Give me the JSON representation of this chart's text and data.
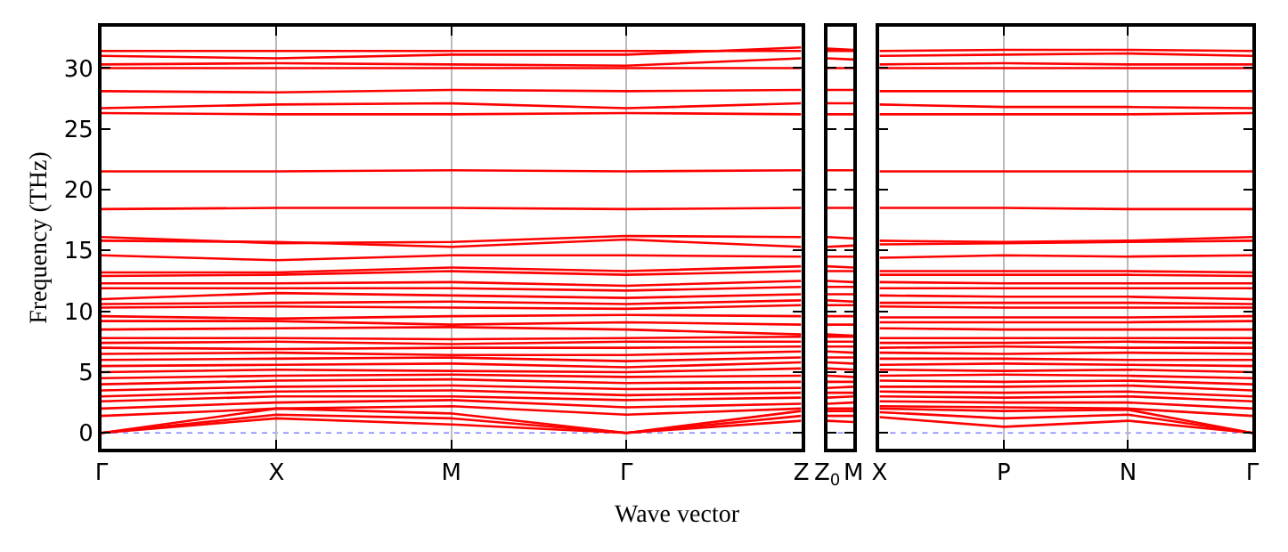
{
  "chart_data": [
    {
      "type": "line",
      "ylabel": "Frequency (THz)",
      "xlabel": "Wave vector",
      "categories": [
        "Γ",
        "X",
        "M",
        "Γ",
        "Z"
      ],
      "ylim": [
        -1.3,
        33.4
      ],
      "yticks": [
        0,
        5,
        10,
        15,
        20,
        25,
        30
      ],
      "grid": "x",
      "marker": "none",
      "line_style": "solid",
      "ref_lines": [
        {
          "axis": "y",
          "value": 0,
          "color": "#8080ff",
          "line_style": "dotted"
        }
      ],
      "series": [
        {
          "color": "#ff0000",
          "values": [
            31.4,
            31.4,
            31.4,
            31.4,
            31.4
          ]
        },
        {
          "color": "#ff0000",
          "values": [
            31.0,
            30.8,
            31.1,
            31.1,
            31.7
          ]
        },
        {
          "color": "#ff0000",
          "values": [
            30.3,
            30.4,
            30.3,
            30.2,
            30.8
          ]
        },
        {
          "color": "#ff0000",
          "values": [
            30.0,
            30.0,
            30.0,
            30.0,
            30.0
          ]
        },
        {
          "color": "#ff0000",
          "values": [
            28.1,
            28.0,
            28.2,
            28.1,
            28.2
          ]
        },
        {
          "color": "#ff0000",
          "values": [
            26.7,
            27.0,
            27.1,
            26.7,
            27.1
          ]
        },
        {
          "color": "#ff0000",
          "values": [
            26.3,
            26.2,
            26.2,
            26.3,
            26.2
          ]
        },
        {
          "color": "#ff0000",
          "values": [
            21.5,
            21.5,
            21.6,
            21.5,
            21.6
          ]
        },
        {
          "color": "#ff0000",
          "values": [
            18.4,
            18.5,
            18.5,
            18.4,
            18.5
          ]
        },
        {
          "color": "#ff0000",
          "values": [
            16.1,
            15.6,
            15.7,
            16.2,
            16.1
          ]
        },
        {
          "color": "#ff0000",
          "values": [
            15.8,
            15.7,
            15.3,
            15.9,
            15.3
          ]
        },
        {
          "color": "#ff0000",
          "values": [
            14.6,
            14.2,
            14.6,
            14.6,
            14.5
          ]
        },
        {
          "color": "#ff0000",
          "values": [
            13.2,
            13.2,
            13.6,
            13.3,
            13.7
          ]
        },
        {
          "color": "#ff0000",
          "values": [
            12.9,
            13.0,
            13.3,
            13.0,
            13.3
          ]
        },
        {
          "color": "#ff0000",
          "values": [
            12.3,
            12.3,
            12.4,
            12.1,
            12.5
          ]
        },
        {
          "color": "#ff0000",
          "values": [
            11.9,
            11.9,
            11.9,
            11.7,
            12.0
          ]
        },
        {
          "color": "#ff0000",
          "values": [
            11.0,
            11.5,
            11.3,
            11.1,
            11.4
          ]
        },
        {
          "color": "#ff0000",
          "values": [
            10.6,
            10.7,
            10.8,
            10.6,
            10.9
          ]
        },
        {
          "color": "#ff0000",
          "values": [
            10.3,
            10.4,
            10.3,
            10.2,
            10.5
          ]
        },
        {
          "color": "#ff0000",
          "values": [
            9.6,
            9.4,
            9.6,
            9.7,
            9.6
          ]
        },
        {
          "color": "#ff0000",
          "values": [
            9.2,
            9.2,
            8.9,
            9.1,
            8.9
          ]
        },
        {
          "color": "#ff0000",
          "values": [
            8.5,
            8.6,
            8.7,
            8.5,
            8.1
          ]
        },
        {
          "color": "#ff0000",
          "values": [
            0,
            1.2,
            0.7,
            0,
            1.0
          ]
        },
        {
          "color": "#ff0000",
          "values": [
            0,
            1.5,
            1.2,
            0,
            1.4
          ]
        },
        {
          "color": "#ff0000",
          "values": [
            0,
            2.0,
            1.6,
            0,
            1.8
          ]
        },
        {
          "color": "#ff0000",
          "values": [
            1.4,
            2.0,
            2.2,
            1.5,
            2.0
          ]
        },
        {
          "color": "#ff0000",
          "values": [
            2.0,
            2.5,
            2.7,
            2.1,
            2.4
          ]
        },
        {
          "color": "#ff0000",
          "values": [
            2.6,
            3.0,
            3.0,
            2.7,
            2.9
          ]
        },
        {
          "color": "#ff0000",
          "values": [
            3.0,
            3.4,
            3.5,
            3.1,
            3.3
          ]
        },
        {
          "color": "#ff0000",
          "values": [
            3.5,
            3.8,
            3.9,
            3.6,
            3.7
          ]
        },
        {
          "color": "#ff0000",
          "values": [
            4.0,
            4.3,
            4.4,
            4.1,
            4.2
          ]
        },
        {
          "color": "#ff0000",
          "values": [
            4.5,
            4.7,
            4.8,
            4.6,
            4.7
          ]
        },
        {
          "color": "#ff0000",
          "values": [
            5.0,
            5.2,
            5.1,
            5.0,
            5.3
          ]
        },
        {
          "color": "#ff0000",
          "values": [
            5.5,
            5.6,
            5.7,
            5.4,
            5.8
          ]
        },
        {
          "color": "#ff0000",
          "values": [
            6.0,
            6.1,
            6.2,
            5.9,
            6.2
          ]
        },
        {
          "color": "#ff0000",
          "values": [
            6.5,
            6.6,
            6.4,
            6.4,
            6.7
          ]
        },
        {
          "color": "#ff0000",
          "values": [
            7.0,
            6.9,
            7.0,
            7.0,
            7.1
          ]
        },
        {
          "color": "#ff0000",
          "values": [
            7.4,
            7.5,
            7.3,
            7.5,
            7.5
          ]
        },
        {
          "color": "#ff0000",
          "values": [
            7.8,
            7.8,
            7.7,
            7.8,
            7.9
          ]
        }
      ]
    },
    {
      "type": "line",
      "categories": [
        "Z$_{0}$",
        "M"
      ],
      "ylim": [
        -1.3,
        33.4
      ],
      "yticks": [
        0,
        5,
        10,
        15,
        20,
        25,
        30
      ],
      "tick_labels": "x",
      "marker": "none",
      "line_style": "solid",
      "ref_lines": [
        {
          "axis": "y",
          "value": 0,
          "color": "#8080ff",
          "line_style": "dotted"
        }
      ],
      "series": [
        {
          "color": "#ff0000",
          "values": [
            31.4,
            31.4
          ]
        },
        {
          "color": "#ff0000",
          "values": [
            31.6,
            31.5
          ]
        },
        {
          "color": "#ff0000",
          "values": [
            30.8,
            30.7
          ]
        },
        {
          "color": "#ff0000",
          "values": [
            30.0,
            30.0
          ]
        },
        {
          "color": "#ff0000",
          "values": [
            28.2,
            28.2
          ]
        },
        {
          "color": "#ff0000",
          "values": [
            27.1,
            27.1
          ]
        },
        {
          "color": "#ff0000",
          "values": [
            26.2,
            26.2
          ]
        },
        {
          "color": "#ff0000",
          "values": [
            21.6,
            21.6
          ]
        },
        {
          "color": "#ff0000",
          "values": [
            18.5,
            18.5
          ]
        },
        {
          "color": "#ff0000",
          "values": [
            16.1,
            16.0
          ]
        },
        {
          "color": "#ff0000",
          "values": [
            15.3,
            15.4
          ]
        },
        {
          "color": "#ff0000",
          "values": [
            14.5,
            14.5
          ]
        },
        {
          "color": "#ff0000",
          "values": [
            13.7,
            13.6
          ]
        },
        {
          "color": "#ff0000",
          "values": [
            13.3,
            13.3
          ]
        },
        {
          "color": "#ff0000",
          "values": [
            12.5,
            12.4
          ]
        },
        {
          "color": "#ff0000",
          "values": [
            12.0,
            12.0
          ]
        },
        {
          "color": "#ff0000",
          "values": [
            11.4,
            11.4
          ]
        },
        {
          "color": "#ff0000",
          "values": [
            10.9,
            10.8
          ]
        },
        {
          "color": "#ff0000",
          "values": [
            10.5,
            10.5
          ]
        },
        {
          "color": "#ff0000",
          "values": [
            9.6,
            9.6
          ]
        },
        {
          "color": "#ff0000",
          "values": [
            8.9,
            8.9
          ]
        },
        {
          "color": "#ff0000",
          "values": [
            8.1,
            8.0
          ]
        },
        {
          "color": "#ff0000",
          "values": [
            1.0,
            0.9
          ]
        },
        {
          "color": "#ff0000",
          "values": [
            1.4,
            1.4
          ]
        },
        {
          "color": "#ff0000",
          "values": [
            1.8,
            1.8
          ]
        },
        {
          "color": "#ff0000",
          "values": [
            2.0,
            2.0
          ]
        },
        {
          "color": "#ff0000",
          "values": [
            2.4,
            2.5
          ]
        },
        {
          "color": "#ff0000",
          "values": [
            2.9,
            3.0
          ]
        },
        {
          "color": "#ff0000",
          "values": [
            3.3,
            3.3
          ]
        },
        {
          "color": "#ff0000",
          "values": [
            3.7,
            3.8
          ]
        },
        {
          "color": "#ff0000",
          "values": [
            4.2,
            4.2
          ]
        },
        {
          "color": "#ff0000",
          "values": [
            4.7,
            4.6
          ]
        },
        {
          "color": "#ff0000",
          "values": [
            5.3,
            5.2
          ]
        },
        {
          "color": "#ff0000",
          "values": [
            5.8,
            5.7
          ]
        },
        {
          "color": "#ff0000",
          "values": [
            6.2,
            6.2
          ]
        },
        {
          "color": "#ff0000",
          "values": [
            6.7,
            6.6
          ]
        },
        {
          "color": "#ff0000",
          "values": [
            7.1,
            7.1
          ]
        },
        {
          "color": "#ff0000",
          "values": [
            7.5,
            7.5
          ]
        },
        {
          "color": "#ff0000",
          "values": [
            7.9,
            7.9
          ]
        }
      ]
    },
    {
      "type": "line",
      "categories": [
        "X",
        "P",
        "N",
        "Γ"
      ],
      "ylim": [
        -1.3,
        33.4
      ],
      "yticks": [
        0,
        5,
        10,
        15,
        20,
        25,
        30
      ],
      "tick_labels": "x",
      "grid": "x",
      "marker": "none",
      "line_style": "solid",
      "ref_lines": [
        {
          "axis": "y",
          "value": 0,
          "color": "#8080ff",
          "line_style": "dotted"
        }
      ],
      "series": [
        {
          "color": "#ff0000",
          "values": [
            31.4,
            31.5,
            31.5,
            31.4
          ]
        },
        {
          "color": "#ff0000",
          "values": [
            31.0,
            31.1,
            31.2,
            31.0
          ]
        },
        {
          "color": "#ff0000",
          "values": [
            30.3,
            30.4,
            30.3,
            30.3
          ]
        },
        {
          "color": "#ff0000",
          "values": [
            30.0,
            30.0,
            30.0,
            30.0
          ]
        },
        {
          "color": "#ff0000",
          "values": [
            28.1,
            28.1,
            28.1,
            28.1
          ]
        },
        {
          "color": "#ff0000",
          "values": [
            27.0,
            26.8,
            26.8,
            26.7
          ]
        },
        {
          "color": "#ff0000",
          "values": [
            26.2,
            26.2,
            26.2,
            26.3
          ]
        },
        {
          "color": "#ff0000",
          "values": [
            21.5,
            21.5,
            21.5,
            21.5
          ]
        },
        {
          "color": "#ff0000",
          "values": [
            18.5,
            18.5,
            18.4,
            18.4
          ]
        },
        {
          "color": "#ff0000",
          "values": [
            15.8,
            15.7,
            15.8,
            16.1
          ]
        },
        {
          "color": "#ff0000",
          "values": [
            15.5,
            15.6,
            15.7,
            15.8
          ]
        },
        {
          "color": "#ff0000",
          "values": [
            14.4,
            14.6,
            14.5,
            14.6
          ]
        },
        {
          "color": "#ff0000",
          "values": [
            13.3,
            13.3,
            13.3,
            13.2
          ]
        },
        {
          "color": "#ff0000",
          "values": [
            13.0,
            13.0,
            13.0,
            12.9
          ]
        },
        {
          "color": "#ff0000",
          "values": [
            12.4,
            12.3,
            12.3,
            12.3
          ]
        },
        {
          "color": "#ff0000",
          "values": [
            11.9,
            11.9,
            11.9,
            11.9
          ]
        },
        {
          "color": "#ff0000",
          "values": [
            11.3,
            11.2,
            11.2,
            11.0
          ]
        },
        {
          "color": "#ff0000",
          "values": [
            10.7,
            10.7,
            10.7,
            10.6
          ]
        },
        {
          "color": "#ff0000",
          "values": [
            10.4,
            10.3,
            10.3,
            10.3
          ]
        },
        {
          "color": "#ff0000",
          "values": [
            9.5,
            9.5,
            9.5,
            9.6
          ]
        },
        {
          "color": "#ff0000",
          "values": [
            9.1,
            9.1,
            9.1,
            9.2
          ]
        },
        {
          "color": "#ff0000",
          "values": [
            8.6,
            8.5,
            8.5,
            8.5
          ]
        },
        {
          "color": "#ff0000",
          "values": [
            1.3,
            0.5,
            1.0,
            0
          ]
        },
        {
          "color": "#ff0000",
          "values": [
            1.7,
            1.2,
            1.5,
            0
          ]
        },
        {
          "color": "#ff0000",
          "values": [
            2.0,
            1.8,
            1.9,
            0
          ]
        },
        {
          "color": "#ff0000",
          "values": [
            2.2,
            2.1,
            2.0,
            1.4
          ]
        },
        {
          "color": "#ff0000",
          "values": [
            2.6,
            2.5,
            2.5,
            2.0
          ]
        },
        {
          "color": "#ff0000",
          "values": [
            3.0,
            2.9,
            3.0,
            2.6
          ]
        },
        {
          "color": "#ff0000",
          "values": [
            3.4,
            3.3,
            3.4,
            3.0
          ]
        },
        {
          "color": "#ff0000",
          "values": [
            3.8,
            3.8,
            3.9,
            3.5
          ]
        },
        {
          "color": "#ff0000",
          "values": [
            4.3,
            4.2,
            4.3,
            4.0
          ]
        },
        {
          "color": "#ff0000",
          "values": [
            4.7,
            4.8,
            4.7,
            4.5
          ]
        },
        {
          "color": "#ff0000",
          "values": [
            5.2,
            5.1,
            5.2,
            5.0
          ]
        },
        {
          "color": "#ff0000",
          "values": [
            5.6,
            5.7,
            5.6,
            5.5
          ]
        },
        {
          "color": "#ff0000",
          "values": [
            6.1,
            6.1,
            6.0,
            6.0
          ]
        },
        {
          "color": "#ff0000",
          "values": [
            6.6,
            6.5,
            6.6,
            6.5
          ]
        },
        {
          "color": "#ff0000",
          "values": [
            7.0,
            7.1,
            7.0,
            7.0
          ]
        },
        {
          "color": "#ff0000",
          "values": [
            7.4,
            7.4,
            7.5,
            7.4
          ]
        },
        {
          "color": "#ff0000",
          "values": [
            7.8,
            7.8,
            7.8,
            7.8
          ]
        }
      ]
    }
  ]
}
